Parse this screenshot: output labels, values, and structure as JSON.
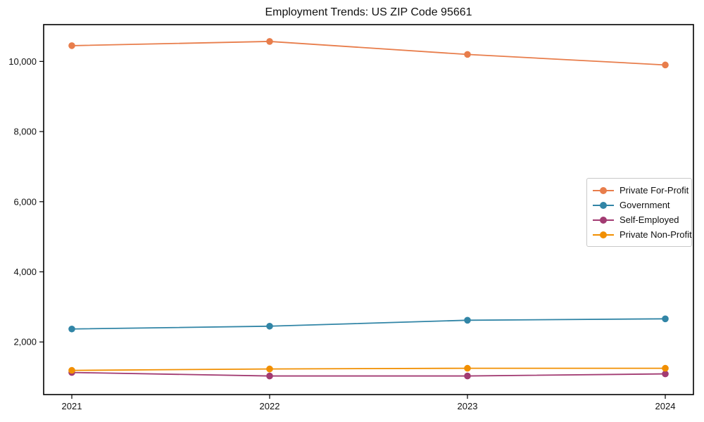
{
  "figure": {
    "title": "Employment Trends: US ZIP Code 95661"
  },
  "chart_data": {
    "type": "line",
    "title": "Employment Trends: US ZIP Code 95661",
    "xlabel": "",
    "ylabel": "",
    "grid": false,
    "legend_position": "center right",
    "x_labels": [
      "2021",
      "2022",
      "2023",
      "2024"
    ],
    "series": [
      {
        "name": "Private For-Profit",
        "color": "#E87D4B",
        "values": [
          10450,
          10570,
          10200,
          9900
        ]
      },
      {
        "name": "Government",
        "color": "#3185A6",
        "values": [
          2370,
          2450,
          2620,
          2660
        ]
      },
      {
        "name": "Self-Employed",
        "color": "#A23B72",
        "values": [
          1130,
          1030,
          1030,
          1090
        ]
      },
      {
        "name": "Private Non-Profit",
        "color": "#F18F01",
        "values": [
          1190,
          1230,
          1250,
          1250
        ]
      }
    ],
    "ylim": [
      500,
      11050
    ],
    "yticks": [
      {
        "value": 2000,
        "label": "2,000"
      },
      {
        "value": 4000,
        "label": "4,000"
      },
      {
        "value": 6000,
        "label": "6,000"
      },
      {
        "value": 8000,
        "label": "8,000"
      },
      {
        "value": 10000,
        "label": "10,000"
      }
    ],
    "axis_color": "#000000",
    "marker_radius": 4.8,
    "line_width": 1.8
  }
}
